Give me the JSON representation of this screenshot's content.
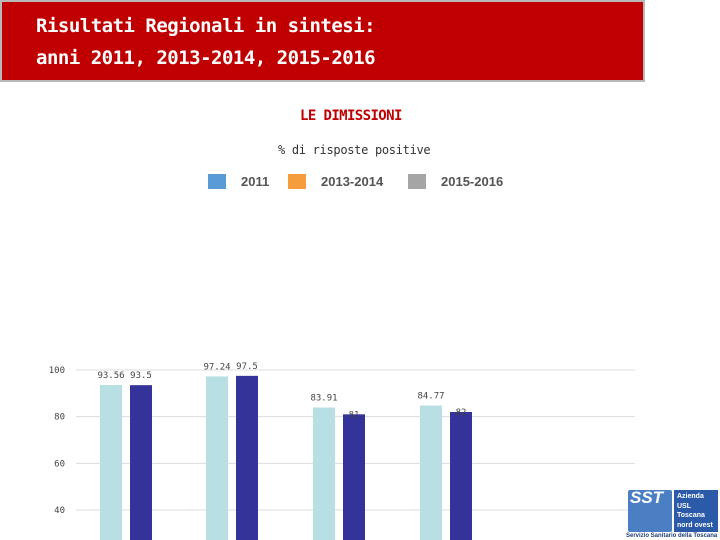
{
  "header": {
    "line1": "Risultati Regionali in sintesi:",
    "line2": "anni 2011, 2013-2014, 2015-2016"
  },
  "section_title": "LE DIMISSIONI",
  "subtitle": "% di risposte positive",
  "legend": [
    {
      "label": "2011",
      "color": "#5b9bd5"
    },
    {
      "label": "2013-2014",
      "color": "#f59d3d"
    },
    {
      "label": "2015-2016",
      "color": "#a5a5a5"
    }
  ],
  "chart_data": {
    "type": "bar",
    "title": "LE DIMISSIONI",
    "subtitle": "% di risposte positive",
    "xlabel": "",
    "ylabel": "",
    "categories": [
      "",
      "",
      "",
      ""
    ],
    "series": [
      {
        "values": [
          93.56,
          97.24,
          83.91,
          84.77
        ],
        "color": "#b8dfe3"
      },
      {
        "values": [
          93.5,
          97.5,
          81,
          82
        ],
        "color": "#333399"
      }
    ],
    "value_labels": [
      [
        "93.56",
        "97.24",
        "83.91",
        "84.77"
      ],
      [
        "93.5",
        "97.5",
        "81",
        "82"
      ]
    ],
    "y_ticks": [
      {
        "value": 100,
        "label": "100"
      },
      {
        "value": 80,
        "label": "80"
      },
      {
        "value": 60,
        "label": "60"
      },
      {
        "value": 40,
        "label": "40"
      }
    ],
    "ylim_visible_bottom": 40,
    "ylim_top": 100,
    "grid": true,
    "legend_position": "top-center"
  },
  "logo": {
    "mark": "SST",
    "org": "Azienda\nUSL\nToscana\nnord ovest",
    "footer": "Servizio Sanitario della Toscana",
    "color": "#2b5aa8"
  }
}
